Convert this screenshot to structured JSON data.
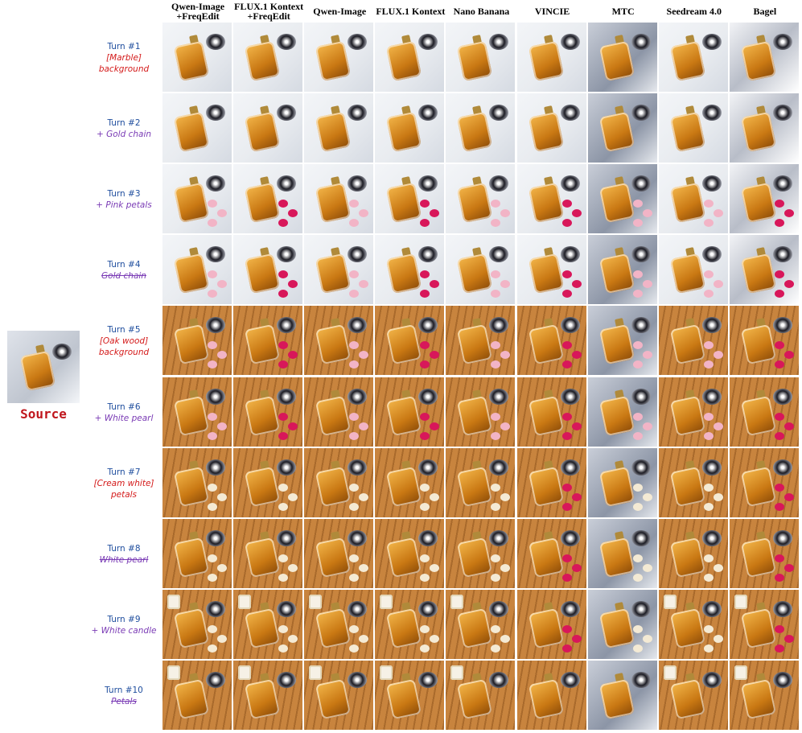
{
  "columns": [
    "Qwen-Image\n+FreqEdit",
    "FLUX.1 Kontext\n+FreqEdit",
    "Qwen-Image",
    "FLUX.1 Kontext",
    "Nano Banana",
    "VINCIE",
    "MTC",
    "Seedream 4.0",
    "Bagel"
  ],
  "source_label": "Source",
  "rows": [
    {
      "turn": "Turn #1",
      "prompt": "[Marble]\nbackground",
      "style": "bg"
    },
    {
      "turn": "Turn #2",
      "prompt": "+ Gold chain",
      "style": "add"
    },
    {
      "turn": "Turn #3",
      "prompt": "+ Pink petals",
      "style": "add"
    },
    {
      "turn": "Turn #4",
      "prompt": "Gold chain",
      "style": "del"
    },
    {
      "turn": "Turn #5",
      "prompt": "[Oak wood]\nbackground",
      "style": "bg"
    },
    {
      "turn": "Turn #6",
      "prompt": "+ White pearl",
      "style": "add"
    },
    {
      "turn": "Turn #7",
      "prompt": "[Cream white]\npetals",
      "style": "bg"
    },
    {
      "turn": "Turn #8",
      "prompt": "White pearl",
      "style": "del"
    },
    {
      "turn": "Turn #9",
      "prompt": "+ White candle",
      "style": "add"
    },
    {
      "turn": "Turn #10",
      "prompt": "Petals",
      "style": "del"
    }
  ],
  "backgrounds": {
    "marble": "#e9ecf0",
    "oak": "#c8843e",
    "dark_wood": "#a96a2c"
  },
  "colors": {
    "turn_text": "#1f4e9e",
    "background_prompt": "#d41a1a",
    "edit_prompt": "#7a3bb5",
    "source_label": "#c0161d"
  }
}
